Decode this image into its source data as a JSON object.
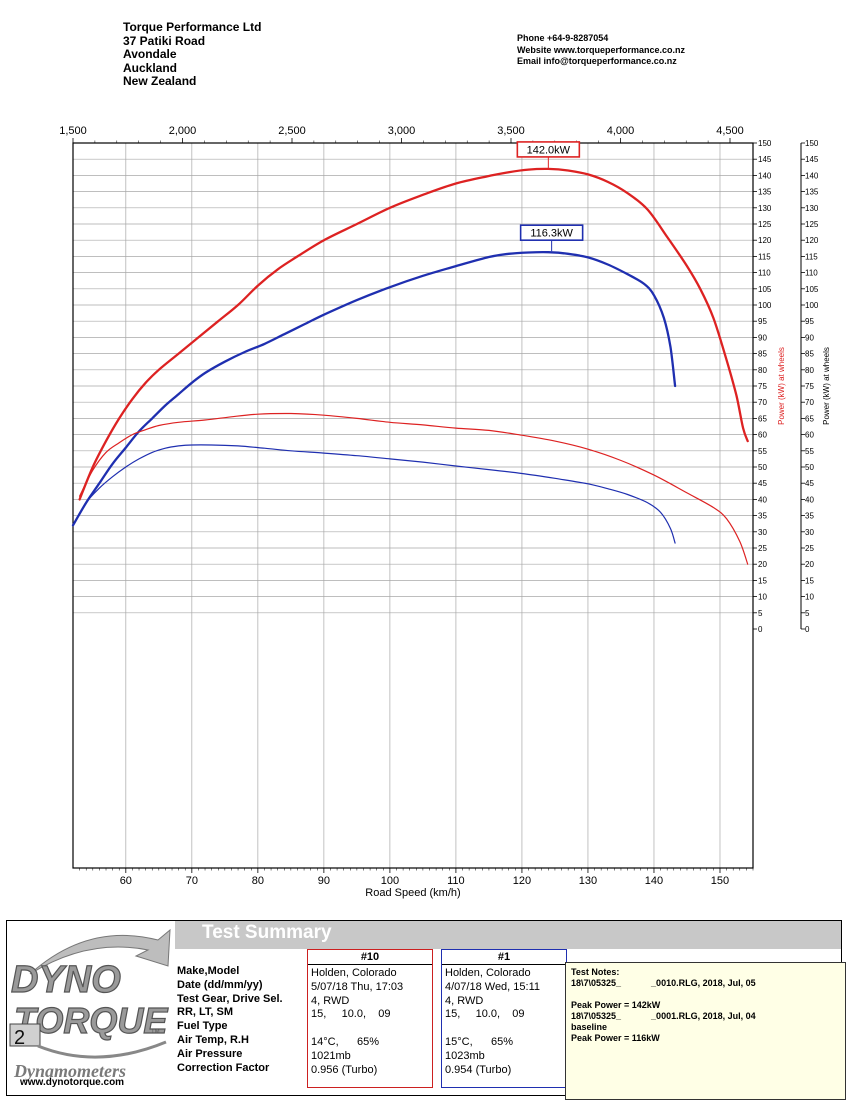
{
  "header": {
    "company_lines": [
      "Torque Performance Ltd",
      "37 Patiki Road",
      "Avondale",
      "Auckland",
      "New Zealand"
    ],
    "contact_lines": [
      "Phone +64-9-8287054",
      "Website  www.torqueperformance.co.nz",
      "Email  info@torqueperformance.co.nz"
    ]
  },
  "chart_data": {
    "type": "line",
    "xlabel": "Road Speed (km/h)",
    "xlim": [
      52,
      155
    ],
    "x_ticks": [
      60,
      70,
      80,
      90,
      100,
      110,
      120,
      130,
      140,
      150
    ],
    "top_axis_ticks": [
      "1,500",
      "2,000",
      "2,500",
      "3,000",
      "3,500",
      "4,000",
      "4,500"
    ],
    "ylim": [
      0,
      150
    ],
    "y_ticks": [
      0,
      5,
      10,
      15,
      20,
      25,
      30,
      35,
      40,
      45,
      50,
      55,
      60,
      65,
      70,
      75,
      80,
      85,
      90,
      95,
      100,
      105,
      110,
      115,
      120,
      125,
      130,
      135,
      140,
      145,
      150
    ],
    "ylabel_inner": "Power (kW) at wheels",
    "ylabel_outer": "Power (kW) at wheels",
    "grid": true,
    "colors": {
      "run10": "#dd2222",
      "run1": "#1f2fb0"
    },
    "series": [
      {
        "label": "power-run10",
        "color": "#dd2222",
        "width": 2.3,
        "x": [
          53,
          55,
          57,
          59,
          61,
          63,
          65,
          68,
          71,
          74,
          77,
          80,
          83,
          86,
          90,
          95,
          100,
          105,
          110,
          115,
          118,
          121,
          124,
          127,
          130,
          133,
          136,
          139,
          142,
          145,
          147,
          149,
          151,
          152.5,
          153.5,
          154.2
        ],
        "y": [
          40,
          50,
          58,
          65,
          71,
          76,
          80,
          85,
          90,
          95,
          100,
          106,
          111,
          115,
          120,
          125,
          130,
          134,
          137.5,
          139.8,
          141,
          141.8,
          142,
          141.5,
          140.3,
          138,
          134.5,
          129.5,
          121,
          112,
          105,
          96,
          83,
          72,
          62,
          58
        ]
      },
      {
        "label": "power-run1",
        "color": "#1f2fb0",
        "width": 2.3,
        "x": [
          52,
          54,
          56,
          58,
          60,
          62,
          64,
          66,
          68,
          70,
          72,
          75,
          78,
          81,
          84,
          87,
          90,
          95,
          100,
          105,
          110,
          115,
          118,
          121,
          124,
          127,
          130,
          133,
          136,
          138.5,
          140,
          141.5,
          142.5,
          143.2
        ],
        "y": [
          32,
          39,
          45,
          51,
          56,
          61,
          65,
          69,
          72.5,
          76,
          79,
          82.5,
          85.5,
          88,
          91,
          94,
          97,
          101.5,
          105.5,
          109,
          112,
          114.8,
          115.8,
          116.2,
          116.3,
          115.8,
          114.7,
          112.5,
          109.5,
          106.5,
          103,
          96,
          87,
          75
        ]
      },
      {
        "label": "torque-run10",
        "color": "#dd2222",
        "width": 1.2,
        "x": [
          53,
          55,
          57,
          59,
          61,
          63,
          65,
          68,
          72,
          76,
          80,
          85,
          90,
          95,
          100,
          105,
          110,
          115,
          120,
          125,
          130,
          135,
          140,
          145,
          149,
          151,
          153,
          154.2
        ],
        "y": [
          41,
          49,
          54.5,
          57.5,
          60,
          61.5,
          62.8,
          63.8,
          64.5,
          65.5,
          66.3,
          66.5,
          66,
          65,
          63.8,
          63,
          62,
          61.3,
          59.8,
          58,
          55.5,
          52,
          47.5,
          42,
          37.5,
          34,
          27,
          20
        ]
      },
      {
        "label": "torque-run1",
        "color": "#1f2fb0",
        "width": 1.2,
        "x": [
          52,
          54,
          56,
          58,
          60,
          62,
          64,
          66,
          68,
          70,
          73,
          77,
          81,
          85,
          90,
          95,
          100,
          105,
          110,
          115,
          120,
          125,
          130,
          133,
          136,
          139,
          141,
          142.5,
          143.2
        ],
        "y": [
          32,
          39,
          43.5,
          47,
          50,
          52.5,
          54.5,
          55.8,
          56.5,
          56.8,
          56.8,
          56.5,
          55.8,
          55,
          54.3,
          53.5,
          52.5,
          51.5,
          50.3,
          49.2,
          48,
          46.5,
          44.8,
          43.3,
          41.5,
          39,
          36,
          31,
          26.5
        ]
      }
    ],
    "annotations": [
      {
        "text": "142.0kW",
        "x": 124,
        "y": 142,
        "color": "#dd2222"
      },
      {
        "text": "116.3kW",
        "x": 124.5,
        "y": 116.3,
        "color": "#1f2fb0"
      }
    ]
  },
  "summary": {
    "title": "Test Summary",
    "field_labels": [
      "Make,Model",
      "Date (dd/mm/yy)",
      "Test Gear, Drive Sel.",
      "RR, LT, SM",
      "Fuel Type",
      "Air Temp, R.H",
      "Air Pressure",
      "Correction Factor"
    ],
    "runs": [
      {
        "header": "#10",
        "values": [
          "Holden, Colorado",
          "5/07/18 Thu, 17:03",
          "4, RWD",
          "15,     10.0,    09",
          "",
          "14°C,      65%",
          "1021mb",
          "0.956 (Turbo)"
        ]
      },
      {
        "header": "#1",
        "values": [
          "Holden, Colorado",
          "4/07/18 Wed, 15:11",
          "4, RWD",
          "15,     10.0,    09",
          "",
          "15°C,      65%",
          "1023mb",
          "0.954 (Turbo)"
        ]
      }
    ],
    "notes_lines": [
      "Test Notes:",
      "18\\7\\05325_            _0010.RLG, 2018, Jul, 05",
      "",
      "Peak Power = 142kW",
      "18\\7\\05325_            _0001.RLG, 2018, Jul, 04",
      "baseline",
      "Peak Power = 116kW"
    ]
  },
  "logo": {
    "line1": "DYNO",
    "line2": "TORQUE",
    "badge": "2",
    "tm": "TM",
    "tagline": "Dynamometers"
  },
  "website": "www.dynotorque.com"
}
